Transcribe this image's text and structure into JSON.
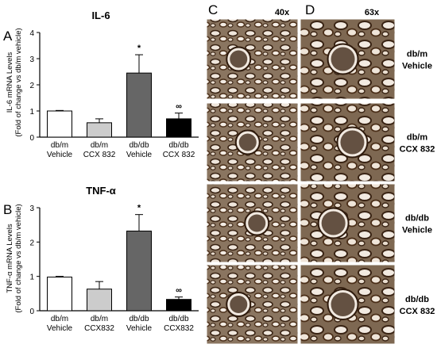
{
  "panels": {
    "A": "A",
    "B": "B",
    "C": "C",
    "D": "D"
  },
  "micrograph": {
    "mag_c": "40x",
    "mag_d": "63x",
    "row_labels": [
      {
        "line1": "db/m",
        "line2": "Vehicle"
      },
      {
        "line1": "db/m",
        "line2": "CCX 832"
      },
      {
        "line1": "db/db",
        "line2": "Vehicle"
      },
      {
        "line1": "db/db",
        "line2": "CCX 832"
      }
    ]
  },
  "chart_data": [
    {
      "type": "bar",
      "title": "IL-6",
      "ylabel_line1": "IL-6 mRNA Levels",
      "ylabel_line2": "(Fold of change vs db/m vehicle)",
      "ylim": [
        0,
        4
      ],
      "yticks": [
        "0",
        "1",
        "2",
        "3",
        "4"
      ],
      "categories": [
        {
          "line1": "db/m",
          "line2": "Vehicle"
        },
        {
          "line1": "db/m",
          "line2": "CCX 832"
        },
        {
          "line1": "db/db",
          "line2": "Vehicle"
        },
        {
          "line1": "db/db",
          "line2": "CCX 832"
        }
      ],
      "values": [
        1.0,
        0.55,
        2.45,
        0.7
      ],
      "errors": [
        0.02,
        0.15,
        0.7,
        0.22
      ],
      "fills": [
        "#ffffff",
        "#cccccc",
        "#666666",
        "#000000"
      ],
      "annotations": [
        "",
        "",
        "*",
        "∞"
      ]
    },
    {
      "type": "bar",
      "title": "TNF-α",
      "ylabel_line1": "TNF-α mRNA Levels",
      "ylabel_line2": "(Fold of change vs db/m vehicle)",
      "ylim": [
        0,
        3
      ],
      "yticks": [
        "0",
        "1",
        "2",
        "3"
      ],
      "categories": [
        {
          "line1": "db/m",
          "line2": "Vehicle"
        },
        {
          "line1": "db/m",
          "line2": "CCX832"
        },
        {
          "line1": "db/db",
          "line2": "Vehicle"
        },
        {
          "line1": "db/db",
          "line2": "CCX832"
        }
      ],
      "values": [
        0.98,
        0.63,
        2.32,
        0.33
      ],
      "errors": [
        0.02,
        0.22,
        0.48,
        0.07
      ],
      "fills": [
        "#ffffff",
        "#cccccc",
        "#666666",
        "#000000"
      ],
      "annotations": [
        "",
        "",
        "*",
        "∞"
      ]
    }
  ]
}
